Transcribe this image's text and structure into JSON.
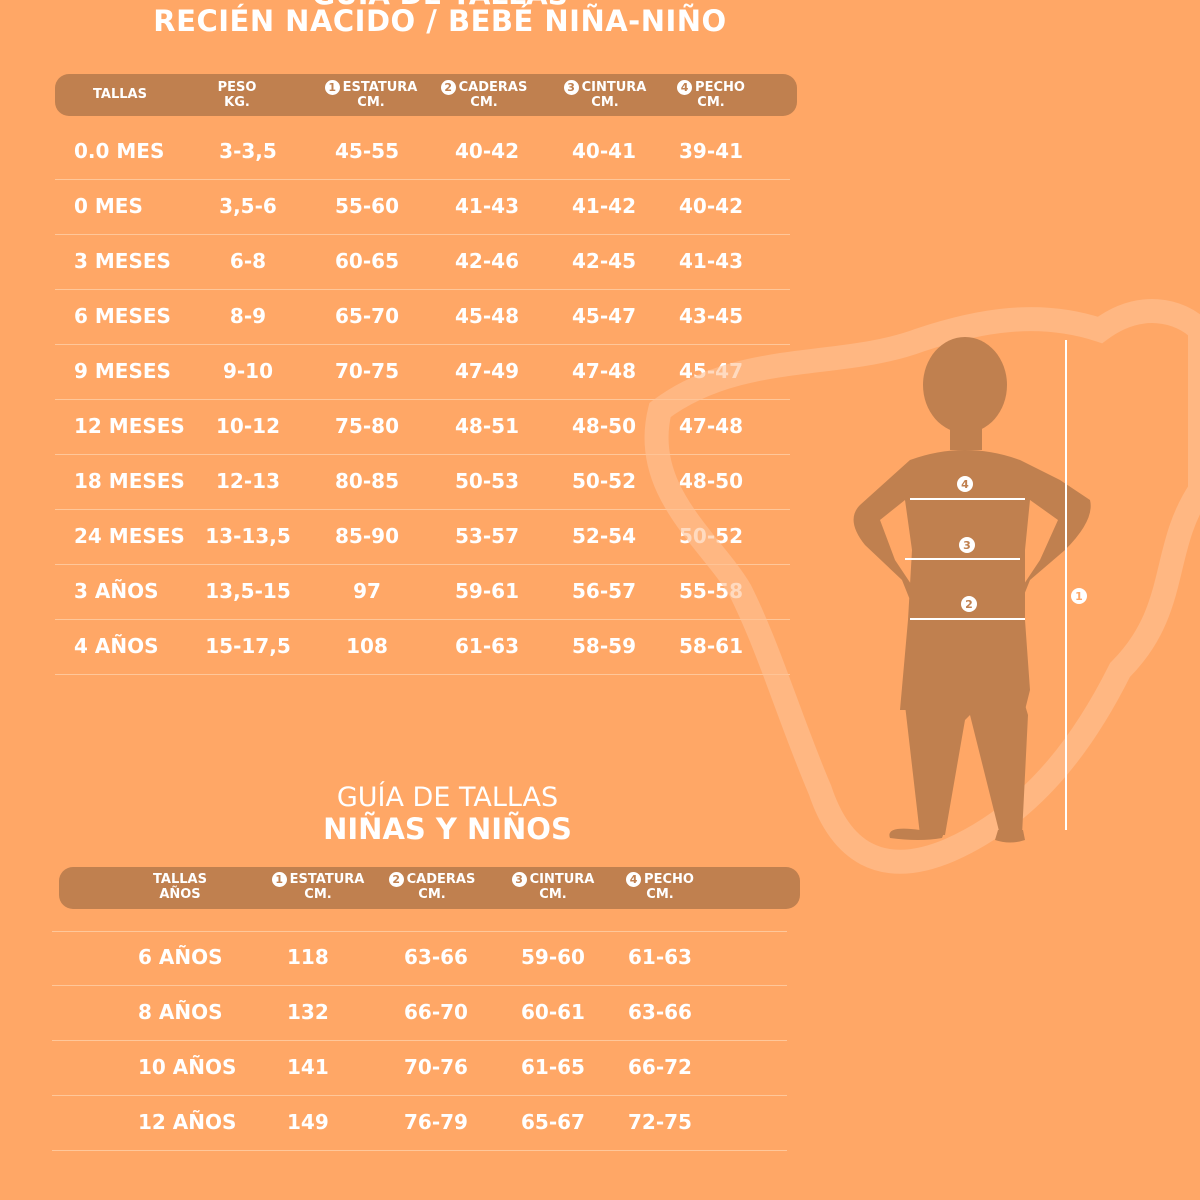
{
  "title_top": "GUÍA DE TALLAS",
  "title1": "RECIÉN NACIDO / BEBÉ NIÑA-NIÑO",
  "table1": {
    "headers": [
      {
        "n": "",
        "l1": "TALLAS",
        "l2": ""
      },
      {
        "n": "",
        "l1": "PESO",
        "l2": "KG."
      },
      {
        "n": "1",
        "l1": "ESTATURA",
        "l2": "CM."
      },
      {
        "n": "2",
        "l1": "CADERAS",
        "l2": "CM."
      },
      {
        "n": "3",
        "l1": "CINTURA",
        "l2": "CM."
      },
      {
        "n": "4",
        "l1": "PECHO",
        "l2": "CM."
      }
    ],
    "rows": [
      [
        "0.0 MES",
        "3-3,5",
        "45-55",
        "40-42",
        "40-41",
        "39-41"
      ],
      [
        "0 MES",
        "3,5-6",
        "55-60",
        "41-43",
        "41-42",
        "40-42"
      ],
      [
        "3 MESES",
        "6-8",
        "60-65",
        "42-46",
        "42-45",
        "41-43"
      ],
      [
        "6 MESES",
        "8-9",
        "65-70",
        "45-48",
        "45-47",
        "43-45"
      ],
      [
        "9 MESES",
        "9-10",
        "70-75",
        "47-49",
        "47-48",
        "45-47"
      ],
      [
        "12 MESES",
        "10-12",
        "75-80",
        "48-51",
        "48-50",
        "47-48"
      ],
      [
        "18 MESES",
        "12-13",
        "80-85",
        "50-53",
        "50-52",
        "48-50"
      ],
      [
        "24 MESES",
        "13-13,5",
        "85-90",
        "53-57",
        "52-54",
        "50-52"
      ],
      [
        "3 AÑOS",
        "13,5-15",
        "97",
        "59-61",
        "56-57",
        "55-58"
      ],
      [
        "4 AÑOS",
        "15-17,5",
        "108",
        "61-63",
        "58-59",
        "58-61"
      ]
    ]
  },
  "title2a": "GUÍA DE TALLAS",
  "title2b": "NIÑAS Y NIÑOS",
  "table2": {
    "headers": [
      {
        "n": "",
        "l1": "TALLAS",
        "l2": "AÑOS"
      },
      {
        "n": "1",
        "l1": "ESTATURA",
        "l2": "CM."
      },
      {
        "n": "2",
        "l1": "CADERAS",
        "l2": "CM."
      },
      {
        "n": "3",
        "l1": "CINTURA",
        "l2": "CM."
      },
      {
        "n": "4",
        "l1": "PECHO",
        "l2": "CM."
      }
    ],
    "rows": [
      [
        "6 AÑOS",
        "118",
        "63-66",
        "59-60",
        "61-63"
      ],
      [
        "8 AÑOS",
        "132",
        "66-70",
        "60-61",
        "63-66"
      ],
      [
        "10 AÑOS",
        "141",
        "70-76",
        "61-65",
        "66-72"
      ],
      [
        "12 AÑOS",
        "149",
        "76-79",
        "65-67",
        "72-75"
      ]
    ]
  },
  "figure": {
    "markers": [
      "4",
      "3",
      "2",
      "1"
    ]
  },
  "colors": {
    "background": "#FFA766",
    "header": "#C0804F",
    "silhouette": "#C0804F",
    "text": "#FFFFFF"
  }
}
